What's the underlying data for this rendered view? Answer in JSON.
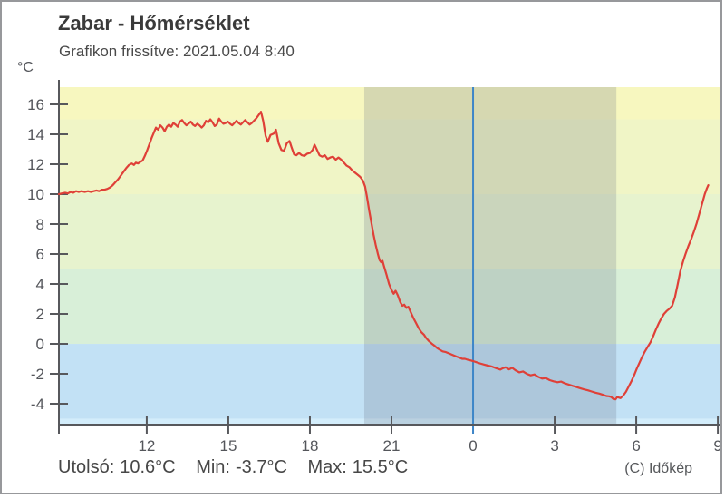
{
  "header": {
    "title": "Zabar - Hőmérséklet",
    "subtitle": "Grafikon frissítve: 2021.05.04 8:40",
    "unit": "°C"
  },
  "footer": {
    "last_label": "Utolsó:",
    "last_value": "10.6°C",
    "min_label": "Min:",
    "min_value": "-3.7°C",
    "max_label": "Max:",
    "max_value": "15.5°C",
    "attribution": "(C) Időkép"
  },
  "chart_data": {
    "type": "line",
    "title": "Zabar - Hőmérséklet",
    "updated": "2021.05.04 8:40",
    "ylabel": "°C",
    "xlabel": "",
    "grid": false,
    "legend": false,
    "ylim": [
      -5.39,
      17.15
    ],
    "xlim_hours": [
      -15.23,
      9.13
    ],
    "night_span_hours": [
      -4.0,
      5.27
    ],
    "midnight_line_hour": 0,
    "x_ticks": [
      {
        "h": -12,
        "label": "12"
      },
      {
        "h": -9,
        "label": "15"
      },
      {
        "h": -6,
        "label": "18"
      },
      {
        "h": -3,
        "label": "21"
      },
      {
        "h": 0,
        "label": "0"
      },
      {
        "h": 3,
        "label": "3"
      },
      {
        "h": 6,
        "label": "6"
      },
      {
        "h": 9,
        "label": "9"
      }
    ],
    "y_ticks": [
      {
        "t": 16,
        "label": "16"
      },
      {
        "t": 14,
        "label": "14"
      },
      {
        "t": 12,
        "label": "12"
      },
      {
        "t": 10,
        "label": "10"
      },
      {
        "t": 8,
        "label": "8"
      },
      {
        "t": 6,
        "label": "6"
      },
      {
        "t": 4,
        "label": "4"
      },
      {
        "t": 2,
        "label": "2"
      },
      {
        "t": 0,
        "label": "0"
      },
      {
        "t": -2,
        "label": "-2"
      },
      {
        "t": -4,
        "label": "-4"
      }
    ],
    "bands": [
      {
        "from": 15,
        "to": 17.15,
        "color": "#f7f7bf"
      },
      {
        "from": 10,
        "to": 15,
        "color": "#f0f5c6"
      },
      {
        "from": 5,
        "to": 10,
        "color": "#e7f3ce"
      },
      {
        "from": 0,
        "to": 5,
        "color": "#d8efd8"
      },
      {
        "from": -5,
        "to": 0,
        "color": "#c2e1f5"
      },
      {
        "from": -5.39,
        "to": -5,
        "color": "#d3edfb"
      }
    ],
    "colors": {
      "night_overlay": "rgba(98,110,128,0.22)",
      "midnight_line": "#3e86c8",
      "axis": "#57585c",
      "tick_label": "#54565b"
    },
    "stats": {
      "last": 10.6,
      "min": -3.7,
      "max": 15.5
    },
    "series": [
      {
        "name": "Hőmérséklet",
        "color": "#df4038",
        "points": [
          [
            -15.23,
            10
          ],
          [
            -15.12,
            10.05
          ],
          [
            -15,
            10.1
          ],
          [
            -14.9,
            10.05
          ],
          [
            -14.8,
            10.15
          ],
          [
            -14.7,
            10.1
          ],
          [
            -14.6,
            10.2
          ],
          [
            -14.5,
            10.15
          ],
          [
            -14.4,
            10.2
          ],
          [
            -14.28,
            10.15
          ],
          [
            -14.16,
            10.2
          ],
          [
            -14.05,
            10.15
          ],
          [
            -13.95,
            10.2
          ],
          [
            -13.85,
            10.25
          ],
          [
            -13.75,
            10.2
          ],
          [
            -13.65,
            10.3
          ],
          [
            -13.55,
            10.3
          ],
          [
            -13.45,
            10.35
          ],
          [
            -13.35,
            10.45
          ],
          [
            -13.25,
            10.6
          ],
          [
            -13.15,
            10.8
          ],
          [
            -13.05,
            11
          ],
          [
            -12.95,
            11.25
          ],
          [
            -12.85,
            11.5
          ],
          [
            -12.75,
            11.75
          ],
          [
            -12.65,
            11.95
          ],
          [
            -12.55,
            12.05
          ],
          [
            -12.47,
            11.95
          ],
          [
            -12.4,
            12.1
          ],
          [
            -12.32,
            12.05
          ],
          [
            -12.24,
            12.15
          ],
          [
            -12.15,
            12.25
          ],
          [
            -12.07,
            12.55
          ],
          [
            -11.98,
            12.95
          ],
          [
            -11.9,
            13.35
          ],
          [
            -11.82,
            13.75
          ],
          [
            -11.74,
            14.1
          ],
          [
            -11.66,
            14.45
          ],
          [
            -11.58,
            14.3
          ],
          [
            -11.5,
            14.6
          ],
          [
            -11.42,
            14.45
          ],
          [
            -11.34,
            14.2
          ],
          [
            -11.26,
            14.5
          ],
          [
            -11.18,
            14.65
          ],
          [
            -11.1,
            14.5
          ],
          [
            -11.02,
            14.75
          ],
          [
            -10.94,
            14.65
          ],
          [
            -10.86,
            14.5
          ],
          [
            -10.78,
            14.85
          ],
          [
            -10.7,
            14.95
          ],
          [
            -10.62,
            14.75
          ],
          [
            -10.54,
            14.6
          ],
          [
            -10.46,
            14.7
          ],
          [
            -10.38,
            14.85
          ],
          [
            -10.3,
            14.65
          ],
          [
            -10.22,
            14.55
          ],
          [
            -10.14,
            14.7
          ],
          [
            -10.06,
            14.6
          ],
          [
            -9.98,
            14.45
          ],
          [
            -9.9,
            14.6
          ],
          [
            -9.82,
            14.9
          ],
          [
            -9.74,
            14.8
          ],
          [
            -9.66,
            15
          ],
          [
            -9.58,
            14.8
          ],
          [
            -9.5,
            14.55
          ],
          [
            -9.42,
            14.65
          ],
          [
            -9.34,
            15.05
          ],
          [
            -9.26,
            14.85
          ],
          [
            -9.18,
            14.7
          ],
          [
            -9.1,
            14.75
          ],
          [
            -9.02,
            14.85
          ],
          [
            -8.94,
            14.7
          ],
          [
            -8.86,
            14.6
          ],
          [
            -8.78,
            14.75
          ],
          [
            -8.7,
            14.9
          ],
          [
            -8.62,
            14.75
          ],
          [
            -8.54,
            14.65
          ],
          [
            -8.46,
            14.8
          ],
          [
            -8.38,
            14.95
          ],
          [
            -8.3,
            14.8
          ],
          [
            -8.22,
            14.65
          ],
          [
            -8.14,
            14.75
          ],
          [
            -8.06,
            14.9
          ],
          [
            -7.98,
            15.05
          ],
          [
            -7.9,
            15.25
          ],
          [
            -7.8,
            15.5
          ],
          [
            -7.72,
            14.9
          ],
          [
            -7.63,
            13.9
          ],
          [
            -7.55,
            13.5
          ],
          [
            -7.45,
            13.95
          ],
          [
            -7.33,
            14.05
          ],
          [
            -7.25,
            14.3
          ],
          [
            -7.15,
            13.4
          ],
          [
            -7.05,
            12.95
          ],
          [
            -6.95,
            12.9
          ],
          [
            -6.85,
            13.4
          ],
          [
            -6.75,
            13.55
          ],
          [
            -6.67,
            13.1
          ],
          [
            -6.58,
            12.65
          ],
          [
            -6.5,
            12.6
          ],
          [
            -6.4,
            12.75
          ],
          [
            -6.3,
            12.6
          ],
          [
            -6.2,
            12.55
          ],
          [
            -6.1,
            12.7
          ],
          [
            -6,
            12.75
          ],
          [
            -5.9,
            12.95
          ],
          [
            -5.83,
            13.3
          ],
          [
            -5.75,
            13
          ],
          [
            -5.65,
            12.6
          ],
          [
            -5.55,
            12.5
          ],
          [
            -5.45,
            12.6
          ],
          [
            -5.35,
            12.35
          ],
          [
            -5.25,
            12.45
          ],
          [
            -5.15,
            12.5
          ],
          [
            -5.05,
            12.3
          ],
          [
            -4.95,
            12.45
          ],
          [
            -4.85,
            12.3
          ],
          [
            -4.75,
            12.1
          ],
          [
            -4.65,
            11.9
          ],
          [
            -4.55,
            11.8
          ],
          [
            -4.45,
            11.6
          ],
          [
            -4.35,
            11.45
          ],
          [
            -4.25,
            11.3
          ],
          [
            -4.15,
            11.15
          ],
          [
            -4.05,
            10.9
          ],
          [
            -3.97,
            10.5
          ],
          [
            -3.9,
            9.8
          ],
          [
            -3.82,
            8.9
          ],
          [
            -3.74,
            8.1
          ],
          [
            -3.66,
            7.3
          ],
          [
            -3.58,
            6.6
          ],
          [
            -3.5,
            6
          ],
          [
            -3.44,
            5.6
          ],
          [
            -3.38,
            5.45
          ],
          [
            -3.33,
            5.55
          ],
          [
            -3.27,
            5.15
          ],
          [
            -3.18,
            4.6
          ],
          [
            -3.09,
            4
          ],
          [
            -3,
            3.6
          ],
          [
            -2.92,
            3.35
          ],
          [
            -2.85,
            3.55
          ],
          [
            -2.77,
            3.25
          ],
          [
            -2.68,
            2.8
          ],
          [
            -2.6,
            2.55
          ],
          [
            -2.53,
            2.62
          ],
          [
            -2.45,
            2.4
          ],
          [
            -2.38,
            2.48
          ],
          [
            -2.3,
            2.15
          ],
          [
            -2.2,
            1.75
          ],
          [
            -2.1,
            1.4
          ],
          [
            -2,
            1.05
          ],
          [
            -1.9,
            0.78
          ],
          [
            -1.8,
            0.6
          ],
          [
            -1.72,
            0.38
          ],
          [
            -1.62,
            0.18
          ],
          [
            -1.52,
            0.02
          ],
          [
            -1.42,
            -0.12
          ],
          [
            -1.32,
            -0.28
          ],
          [
            -1.22,
            -0.4
          ],
          [
            -1.12,
            -0.5
          ],
          [
            -1,
            -0.55
          ],
          [
            -0.9,
            -0.62
          ],
          [
            -0.8,
            -0.7
          ],
          [
            -0.7,
            -0.78
          ],
          [
            -0.6,
            -0.85
          ],
          [
            -0.5,
            -0.92
          ],
          [
            -0.4,
            -1
          ],
          [
            -0.3,
            -1
          ],
          [
            -0.2,
            -1.06
          ],
          [
            -0.1,
            -1.1
          ],
          [
            0,
            -1.15
          ],
          [
            0.12,
            -1.22
          ],
          [
            0.25,
            -1.3
          ],
          [
            0.4,
            -1.38
          ],
          [
            0.55,
            -1.45
          ],
          [
            0.7,
            -1.52
          ],
          [
            0.85,
            -1.62
          ],
          [
            1,
            -1.72
          ],
          [
            1.1,
            -1.62
          ],
          [
            1.2,
            -1.56
          ],
          [
            1.32,
            -1.7
          ],
          [
            1.44,
            -1.6
          ],
          [
            1.56,
            -1.76
          ],
          [
            1.7,
            -1.9
          ],
          [
            1.84,
            -1.84
          ],
          [
            1.98,
            -2
          ],
          [
            2.12,
            -2.1
          ],
          [
            2.26,
            -2.04
          ],
          [
            2.4,
            -2.2
          ],
          [
            2.54,
            -2.32
          ],
          [
            2.68,
            -2.28
          ],
          [
            2.82,
            -2.42
          ],
          [
            2.96,
            -2.5
          ],
          [
            3.1,
            -2.56
          ],
          [
            3.24,
            -2.52
          ],
          [
            3.38,
            -2.64
          ],
          [
            3.52,
            -2.72
          ],
          [
            3.66,
            -2.8
          ],
          [
            3.8,
            -2.88
          ],
          [
            3.94,
            -2.96
          ],
          [
            4.08,
            -3.04
          ],
          [
            4.22,
            -3.1
          ],
          [
            4.36,
            -3.18
          ],
          [
            4.5,
            -3.26
          ],
          [
            4.64,
            -3.32
          ],
          [
            4.78,
            -3.4
          ],
          [
            4.9,
            -3.48
          ],
          [
            5,
            -3.5
          ],
          [
            5.08,
            -3.55
          ],
          [
            5.16,
            -3.68
          ],
          [
            5.24,
            -3.7
          ],
          [
            5.3,
            -3.55
          ],
          [
            5.42,
            -3.62
          ],
          [
            5.52,
            -3.45
          ],
          [
            5.62,
            -3.2
          ],
          [
            5.72,
            -2.85
          ],
          [
            5.82,
            -2.5
          ],
          [
            5.92,
            -2.1
          ],
          [
            6.02,
            -1.65
          ],
          [
            6.12,
            -1.25
          ],
          [
            6.22,
            -0.85
          ],
          [
            6.32,
            -0.5
          ],
          [
            6.42,
            -0.2
          ],
          [
            6.52,
            0.1
          ],
          [
            6.62,
            0.5
          ],
          [
            6.72,
            0.95
          ],
          [
            6.82,
            1.35
          ],
          [
            6.92,
            1.7
          ],
          [
            7.02,
            2
          ],
          [
            7.12,
            2.2
          ],
          [
            7.22,
            2.35
          ],
          [
            7.32,
            2.55
          ],
          [
            7.42,
            3.1
          ],
          [
            7.52,
            3.95
          ],
          [
            7.62,
            4.85
          ],
          [
            7.72,
            5.5
          ],
          [
            7.82,
            6.05
          ],
          [
            7.92,
            6.55
          ],
          [
            8.02,
            7
          ],
          [
            8.12,
            7.5
          ],
          [
            8.22,
            8.05
          ],
          [
            8.32,
            8.7
          ],
          [
            8.42,
            9.35
          ],
          [
            8.52,
            10
          ],
          [
            8.6,
            10.4
          ],
          [
            8.65,
            10.6
          ]
        ]
      }
    ]
  }
}
